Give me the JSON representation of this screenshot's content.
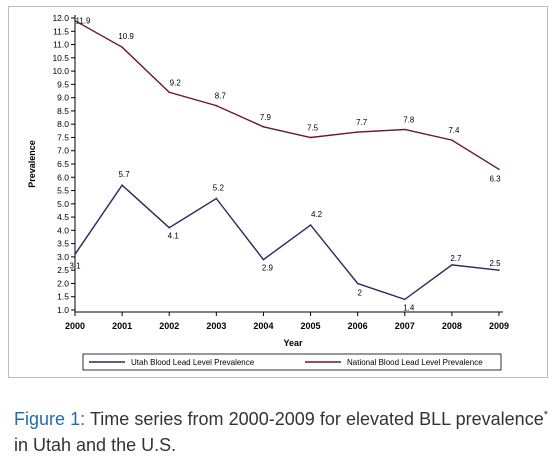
{
  "chart_data": {
    "type": "line",
    "title": "",
    "xlabel": "Year",
    "ylabel": "Prevalence",
    "x": [
      2000,
      2001,
      2002,
      2003,
      2004,
      2005,
      2006,
      2007,
      2008,
      2009
    ],
    "x_tick_labels": [
      "2000",
      "2001",
      "2002",
      "2003",
      "2004",
      "2005",
      "2006",
      "2007",
      "2008",
      "2009"
    ],
    "ylim": [
      1.0,
      12.0
    ],
    "y_ticks": [
      1.0,
      1.5,
      2.0,
      2.5,
      3.0,
      3.5,
      4.0,
      4.5,
      5.0,
      5.5,
      6.0,
      6.5,
      7.0,
      7.5,
      8.0,
      8.5,
      9.0,
      9.5,
      10.0,
      10.5,
      11.0,
      11.5,
      12.0
    ],
    "y_tick_labels": [
      "1.0",
      "1.5",
      "2.0",
      "2.5",
      "3.0",
      "3.5",
      "4.0",
      "4.5",
      "5.0",
      "5.5",
      "6.0",
      "6.5",
      "7.0",
      "7.5",
      "8.0",
      "8.5",
      "9.0",
      "9.5",
      "10.0",
      "10.5",
      "11.0",
      "11.5",
      "12.0"
    ],
    "grid": false,
    "legend_position": "bottom",
    "series": [
      {
        "name": "Utah Blood Lead Level Prevalence",
        "color": "#2b2a5e",
        "values": [
          3.1,
          5.7,
          4.1,
          5.2,
          2.9,
          4.2,
          2.0,
          1.4,
          2.7,
          2.5
        ],
        "labels": [
          "3.1",
          "5.7",
          "4.1",
          "5.2",
          "2.9",
          "4.2",
          "2",
          "1.4",
          "2.7",
          "2.5"
        ]
      },
      {
        "name": "National Blood Lead Level Prevalence",
        "color": "#6b1a1f",
        "values": [
          11.9,
          10.9,
          9.2,
          8.7,
          7.9,
          7.5,
          7.7,
          7.8,
          7.4,
          6.3
        ],
        "labels": [
          "11.9",
          "10.9",
          "9.2",
          "8.7",
          "7.9",
          "7.5",
          "7.7",
          "7.8",
          "7.4",
          "6.3"
        ]
      }
    ]
  },
  "caption": {
    "label": "Figure 1:",
    "text": " Time series from 2000-2009 for elevated BLL prevalence",
    "marker": "*",
    "text_after": " in Utah and the U.S."
  },
  "colors": {
    "caption_label": "#1f6db5",
    "axis": "#000000"
  }
}
